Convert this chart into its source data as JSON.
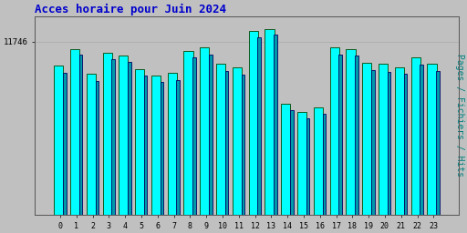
{
  "title": "Acces horaire pour Juin 2024",
  "title_color": "#0000cc",
  "title_fontsize": 9,
  "ylabel": "Pages / Fichiers / Hits",
  "ylabel_color": "#008080",
  "ylabel_fontsize": 7,
  "background_color": "#c0c0c0",
  "plot_bg_color": "#c0c0c0",
  "categories": [
    0,
    1,
    2,
    3,
    4,
    5,
    6,
    7,
    8,
    9,
    10,
    11,
    12,
    13,
    14,
    15,
    16,
    17,
    18,
    19,
    20,
    21,
    22,
    23
  ],
  "values_pages": [
    11600,
    11700,
    11550,
    11680,
    11660,
    11580,
    11540,
    11555,
    11690,
    11710,
    11610,
    11590,
    11810,
    11820,
    11370,
    11320,
    11350,
    11710,
    11700,
    11620,
    11610,
    11590,
    11650,
    11610
  ],
  "values_files": [
    11560,
    11665,
    11510,
    11640,
    11625,
    11540,
    11500,
    11515,
    11650,
    11670,
    11570,
    11545,
    11770,
    11790,
    11330,
    11285,
    11310,
    11665,
    11660,
    11575,
    11565,
    11550,
    11605,
    11568
  ],
  "bar_color_pages": "#00ffff",
  "bar_color_files": "#0099aa",
  "bar_edge_color_dark": "#004400",
  "bar_edge_color_blue": "#000066",
  "bar_edge_width": 0.6,
  "ylim_min": 10700,
  "ylim_max": 11900,
  "ytick_val": 11746,
  "ytick_label": "11746",
  "grid_color": "#aaaaaa",
  "font_family": "monospace",
  "outer_border_color": "#555555"
}
